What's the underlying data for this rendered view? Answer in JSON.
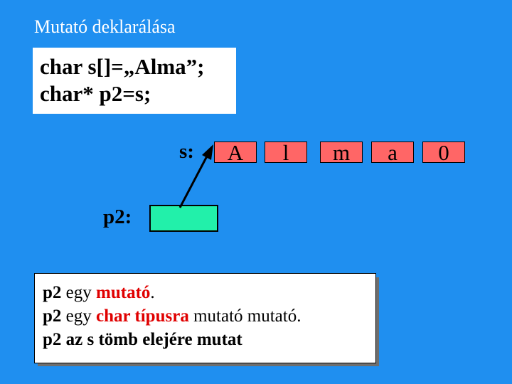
{
  "title": "Mutató deklarálása",
  "code": {
    "line1": "char s[]=„Alma”;",
    "line2": "char* p2=s;"
  },
  "array": {
    "label": "s:",
    "cells": [
      "A",
      "l",
      "m",
      "a",
      "0"
    ]
  },
  "pointer": {
    "label": "p2:"
  },
  "info": {
    "line1": {
      "a": "p2",
      "b": " egy ",
      "c": "mutató",
      "d": "."
    },
    "line2": {
      "a": "p2",
      "b": " egy ",
      "c": "char típusra",
      "d": " mutató mutató."
    },
    "line3": "p2 az s tömb elejére mutat"
  },
  "colors": {
    "background": "#1f8ff0",
    "array_cell": "#ff6666",
    "pointer_box": "#22f0aa",
    "highlight": "#e00000"
  }
}
